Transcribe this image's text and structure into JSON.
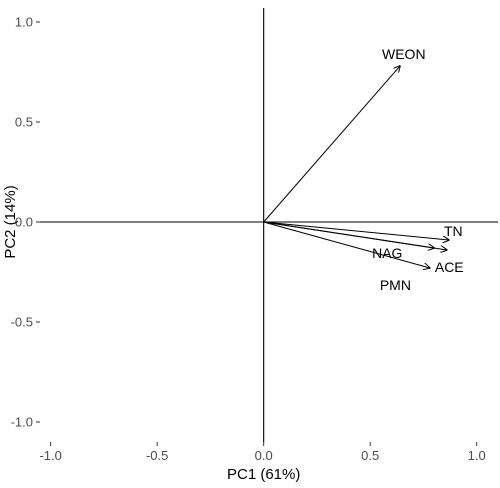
{
  "chart_data": {
    "type": "biplot",
    "xlabel": "PC1 (61%)",
    "ylabel": "PC2 (14%)",
    "xlim": [
      -1.05,
      1.1
    ],
    "ylim": [
      -1.1,
      1.07
    ],
    "x_ticks": [
      -1.0,
      -0.5,
      0.0,
      0.5,
      1.0
    ],
    "y_ticks": [
      -1.0,
      -0.5,
      0.0,
      0.5,
      1.0
    ],
    "x_tick_labels": [
      "-1.0",
      "-0.5",
      "0.0",
      "0.5",
      "1.0"
    ],
    "y_tick_labels": [
      "-1.0",
      "-0.5",
      "0.0",
      "0.5",
      "1.0"
    ],
    "grid": false,
    "vectors": [
      {
        "name": "WEON",
        "x": 0.64,
        "y": 0.78
      },
      {
        "name": "TN",
        "x": 0.87,
        "y": -0.09
      },
      {
        "name": "ACE",
        "x": 0.86,
        "y": -0.14
      },
      {
        "name": "NAG",
        "x": 0.8,
        "y": -0.13
      },
      {
        "name": "PMN",
        "x": 0.78,
        "y": -0.23
      }
    ]
  }
}
